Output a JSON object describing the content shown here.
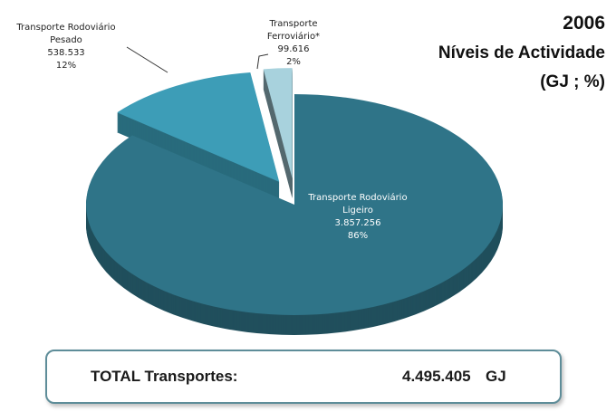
{
  "chart_data": {
    "type": "pie",
    "title": "2006",
    "subtitle": "Níveis de Actividade",
    "units_label": "(GJ ; %)",
    "categories": [
      "Transporte Rodoviário Ligeiro",
      "Transporte Rodoviário Pesado",
      "Transporte Ferroviário*"
    ],
    "values": [
      3857256,
      538533,
      99616
    ],
    "value_labels": [
      "3.857.256",
      "538.533",
      "99.616"
    ],
    "percentages": [
      86,
      12,
      2
    ],
    "percentage_labels": [
      "86%",
      "12%",
      "2%"
    ],
    "colors": [
      "#2f7488",
      "#3d9db7",
      "#a8d2dd"
    ],
    "total": {
      "label": "TOTAL Transportes:",
      "value": 4495405,
      "value_label": "4.495.405",
      "unit": "GJ"
    }
  }
}
